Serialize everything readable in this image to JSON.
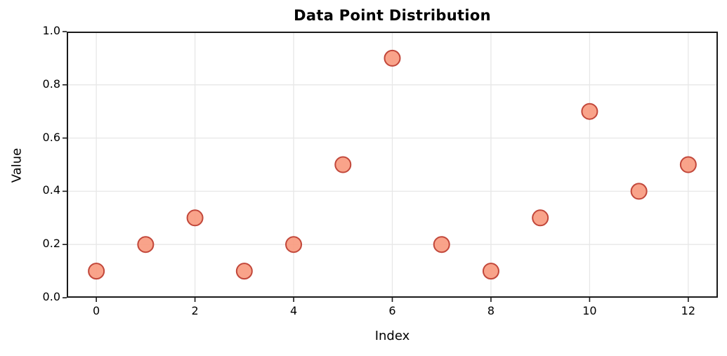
{
  "figure": {
    "background": "#ffffff",
    "text_color": "#000000",
    "grid_color": "#e7e7e7",
    "spine_color": "#1a1a1a",
    "tick_color": "#1a1a1a"
  },
  "chart_data": {
    "type": "scatter",
    "title": "Data Point Distribution",
    "xlabel": "Index",
    "ylabel": "Value",
    "x": [
      0,
      1,
      2,
      3,
      4,
      5,
      6,
      7,
      8,
      9,
      10,
      11,
      12
    ],
    "y": [
      0.1,
      0.2,
      0.3,
      0.1,
      0.2,
      0.5,
      0.9,
      0.2,
      0.1,
      0.3,
      0.7,
      0.4,
      0.5
    ],
    "xlim": [
      -0.6,
      12.6
    ],
    "ylim": [
      0,
      1.0
    ],
    "xticks": [
      0,
      2,
      4,
      6,
      8,
      10,
      12
    ],
    "xtick_labels": [
      "0",
      "2",
      "4",
      "6",
      "8",
      "10",
      "12"
    ],
    "yticks": [
      0,
      0.2,
      0.4,
      0.6,
      0.8,
      1.0
    ],
    "ytick_labels": [
      "0.0",
      "0.2",
      "0.4",
      "0.6",
      "0.8",
      "1.0"
    ],
    "grid": true,
    "legend": "none",
    "marker": {
      "shape": "circle",
      "fill": "#f8997d",
      "edge": "#c2473a",
      "radius": 11,
      "edge_width": 2,
      "fill_opacity": 0.9
    }
  }
}
